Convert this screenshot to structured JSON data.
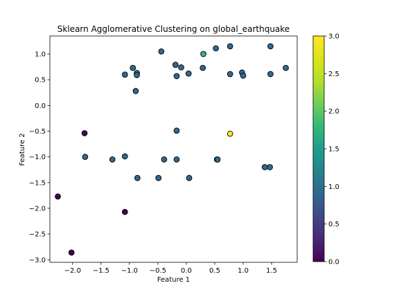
{
  "chart_data": {
    "type": "scatter",
    "title": "Sklearn Agglomerative Clustering on global_earthquake",
    "xlabel": "Feature 1",
    "ylabel": "Feature 2",
    "xlim": [
      -2.4,
      1.95
    ],
    "ylim": [
      -3.05,
      1.35
    ],
    "xticks": [
      -2.0,
      -1.5,
      -1.0,
      -0.5,
      0.0,
      0.5,
      1.0,
      1.5
    ],
    "xtick_labels": [
      "−2.0",
      "−1.5",
      "−1.0",
      "−0.5",
      "0.0",
      "0.5",
      "1.0",
      "1.5"
    ],
    "yticks": [
      -3.0,
      -2.5,
      -2.0,
      -1.5,
      -1.0,
      -0.5,
      0.0,
      0.5,
      1.0
    ],
    "ytick_labels": [
      "−3.0",
      "−2.5",
      "−2.0",
      "−1.5",
      "−1.0",
      "−0.5",
      "0.0",
      "0.5",
      "1.0"
    ],
    "grid": false,
    "colormap": "viridis",
    "colorbar": {
      "range": [
        0.0,
        3.0
      ],
      "ticks": [
        0.0,
        0.5,
        1.0,
        1.5,
        2.0,
        2.5,
        3.0
      ],
      "tick_labels": [
        "0.0",
        "0.5",
        "1.0",
        "1.5",
        "2.0",
        "2.5",
        "3.0"
      ]
    },
    "point_colors": {
      "0": "#440154",
      "1": "#31688e",
      "2": "#35b779",
      "3": "#fde725"
    },
    "points": [
      {
        "x": -0.44,
        "y": 1.05,
        "c": 1
      },
      {
        "x": 0.3,
        "y": 1.0,
        "c": 2
      },
      {
        "x": 0.52,
        "y": 1.11,
        "c": 1
      },
      {
        "x": 0.77,
        "y": 1.15,
        "c": 1
      },
      {
        "x": 1.48,
        "y": 1.15,
        "c": 1
      },
      {
        "x": -0.19,
        "y": 0.79,
        "c": 1
      },
      {
        "x": -0.09,
        "y": 0.74,
        "c": 1
      },
      {
        "x": 0.29,
        "y": 0.73,
        "c": 1
      },
      {
        "x": 1.75,
        "y": 0.73,
        "c": 1
      },
      {
        "x": -0.94,
        "y": 0.73,
        "c": 1
      },
      {
        "x": -0.87,
        "y": 0.63,
        "c": 1
      },
      {
        "x": -1.08,
        "y": 0.6,
        "c": 1
      },
      {
        "x": -0.87,
        "y": 0.59,
        "c": 1
      },
      {
        "x": 0.04,
        "y": 0.62,
        "c": 1
      },
      {
        "x": -0.17,
        "y": 0.57,
        "c": 1
      },
      {
        "x": 0.77,
        "y": 0.61,
        "c": 1
      },
      {
        "x": 0.98,
        "y": 0.64,
        "c": 1
      },
      {
        "x": 1.0,
        "y": 0.58,
        "c": 1
      },
      {
        "x": 1.48,
        "y": 0.61,
        "c": 1
      },
      {
        "x": -0.89,
        "y": 0.28,
        "c": 1
      },
      {
        "x": -0.17,
        "y": -0.49,
        "c": 1
      },
      {
        "x": 0.77,
        "y": -0.55,
        "c": 3
      },
      {
        "x": -1.79,
        "y": -0.54,
        "c": 0
      },
      {
        "x": -1.78,
        "y": -1.0,
        "c": 1
      },
      {
        "x": -1.08,
        "y": -0.99,
        "c": 1
      },
      {
        "x": -1.3,
        "y": -1.05,
        "c": 1
      },
      {
        "x": -0.39,
        "y": -1.05,
        "c": 1
      },
      {
        "x": -0.17,
        "y": -1.05,
        "c": 1
      },
      {
        "x": 0.54,
        "y": -1.05,
        "c": 1
      },
      {
        "x": 0.55,
        "y": -1.05,
        "c": 1
      },
      {
        "x": 1.38,
        "y": -1.2,
        "c": 1
      },
      {
        "x": 1.47,
        "y": -1.2,
        "c": 1
      },
      {
        "x": -0.86,
        "y": -1.41,
        "c": 1
      },
      {
        "x": -0.49,
        "y": -1.41,
        "c": 1
      },
      {
        "x": 0.05,
        "y": -1.41,
        "c": 1
      },
      {
        "x": -2.26,
        "y": -1.77,
        "c": 0
      },
      {
        "x": -1.08,
        "y": -2.07,
        "c": 0
      },
      {
        "x": -2.02,
        "y": -2.86,
        "c": 0
      }
    ]
  }
}
